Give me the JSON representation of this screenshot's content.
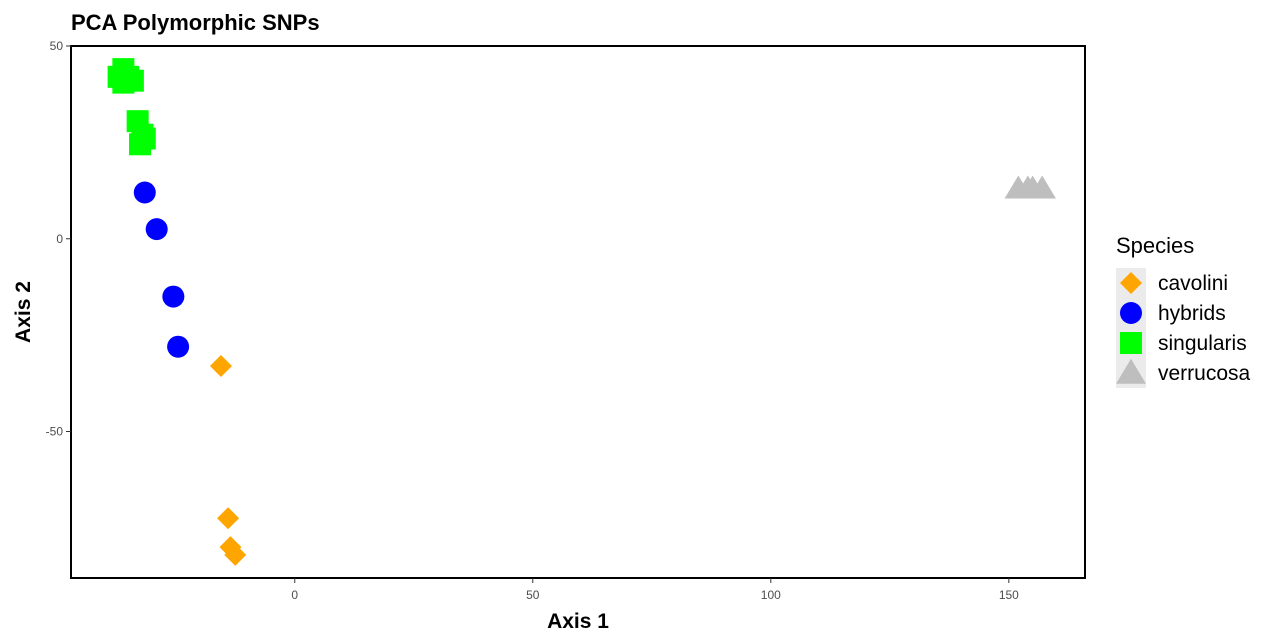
{
  "chart_data": {
    "type": "scatter",
    "title": "PCA Polymorphic SNPs",
    "xlabel": "Axis 1",
    "ylabel": "Axis 2",
    "xlim": [
      -47,
      166
    ],
    "ylim": [
      -88,
      50
    ],
    "x_ticks": [
      0,
      50,
      100,
      150
    ],
    "y_ticks": [
      50,
      0,
      -50
    ],
    "grid": false,
    "legend": {
      "title": "Species",
      "placement": "right"
    },
    "series": [
      {
        "name": "cavolini",
        "color": "#FFA500",
        "shape": "diamond",
        "points": [
          [
            -15.5,
            -33
          ],
          [
            -14,
            -72.5
          ],
          [
            -13.5,
            -80
          ],
          [
            -12.5,
            -82
          ]
        ]
      },
      {
        "name": "hybrids",
        "color": "#0000FF",
        "shape": "circle",
        "points": [
          [
            -31.5,
            12
          ],
          [
            -29,
            2.5
          ],
          [
            -25.5,
            -15
          ],
          [
            -24.5,
            -28
          ]
        ]
      },
      {
        "name": "singularis",
        "color": "#00FF00",
        "shape": "square",
        "points": [
          [
            -37,
            42
          ],
          [
            -36,
            44
          ],
          [
            -36,
            40.5
          ],
          [
            -35,
            42
          ],
          [
            -34,
            41
          ],
          [
            -33,
            30.5
          ],
          [
            -32,
            27
          ],
          [
            -32.5,
            24.5
          ],
          [
            -31.5,
            26
          ]
        ]
      },
      {
        "name": "verrucosa",
        "color": "#BEBEBE",
        "shape": "triangle",
        "points": [
          [
            152,
            13
          ],
          [
            154,
            13
          ],
          [
            155,
            13
          ],
          [
            157,
            13
          ]
        ]
      }
    ]
  }
}
